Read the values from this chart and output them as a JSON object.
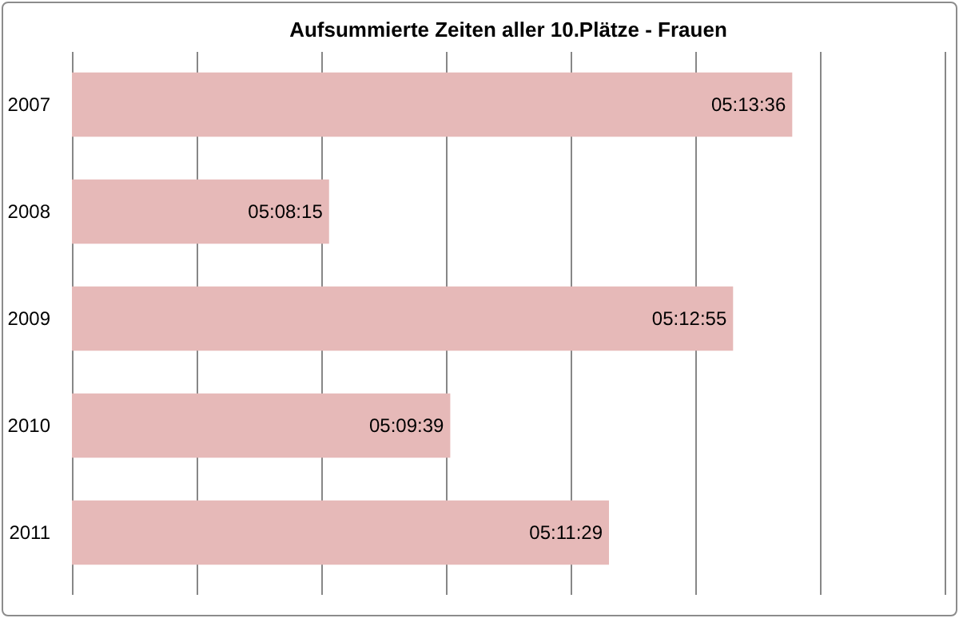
{
  "chart_data": {
    "type": "bar",
    "orientation": "horizontal",
    "title": "Aufsummierte Zeiten aller 10.Plätze - Frauen",
    "categories": [
      "2007",
      "2008",
      "2009",
      "2010",
      "2011"
    ],
    "values": [
      18816,
      18495,
      18775,
      18579,
      18689
    ],
    "value_labels": [
      "05:13:36",
      "05:08:15",
      "05:12:55",
      "05:09:39",
      "05:11:29"
    ],
    "color": "#e6b9b8",
    "xlim": [
      18316.8,
      18921.6
    ],
    "xticks": [
      {
        "value": 18316.8,
        "label": null
      },
      {
        "value": 18403.2,
        "label": null
      },
      {
        "value": 18489.6,
        "label": null
      },
      {
        "value": 18576,
        "label": null
      },
      {
        "value": 18662.4,
        "label": null
      },
      {
        "value": 18748.8,
        "label": null
      },
      {
        "value": 18835.2,
        "label": null
      },
      {
        "value": 18921.6,
        "label": null
      }
    ],
    "grid": "x",
    "tick_labels": "y"
  }
}
